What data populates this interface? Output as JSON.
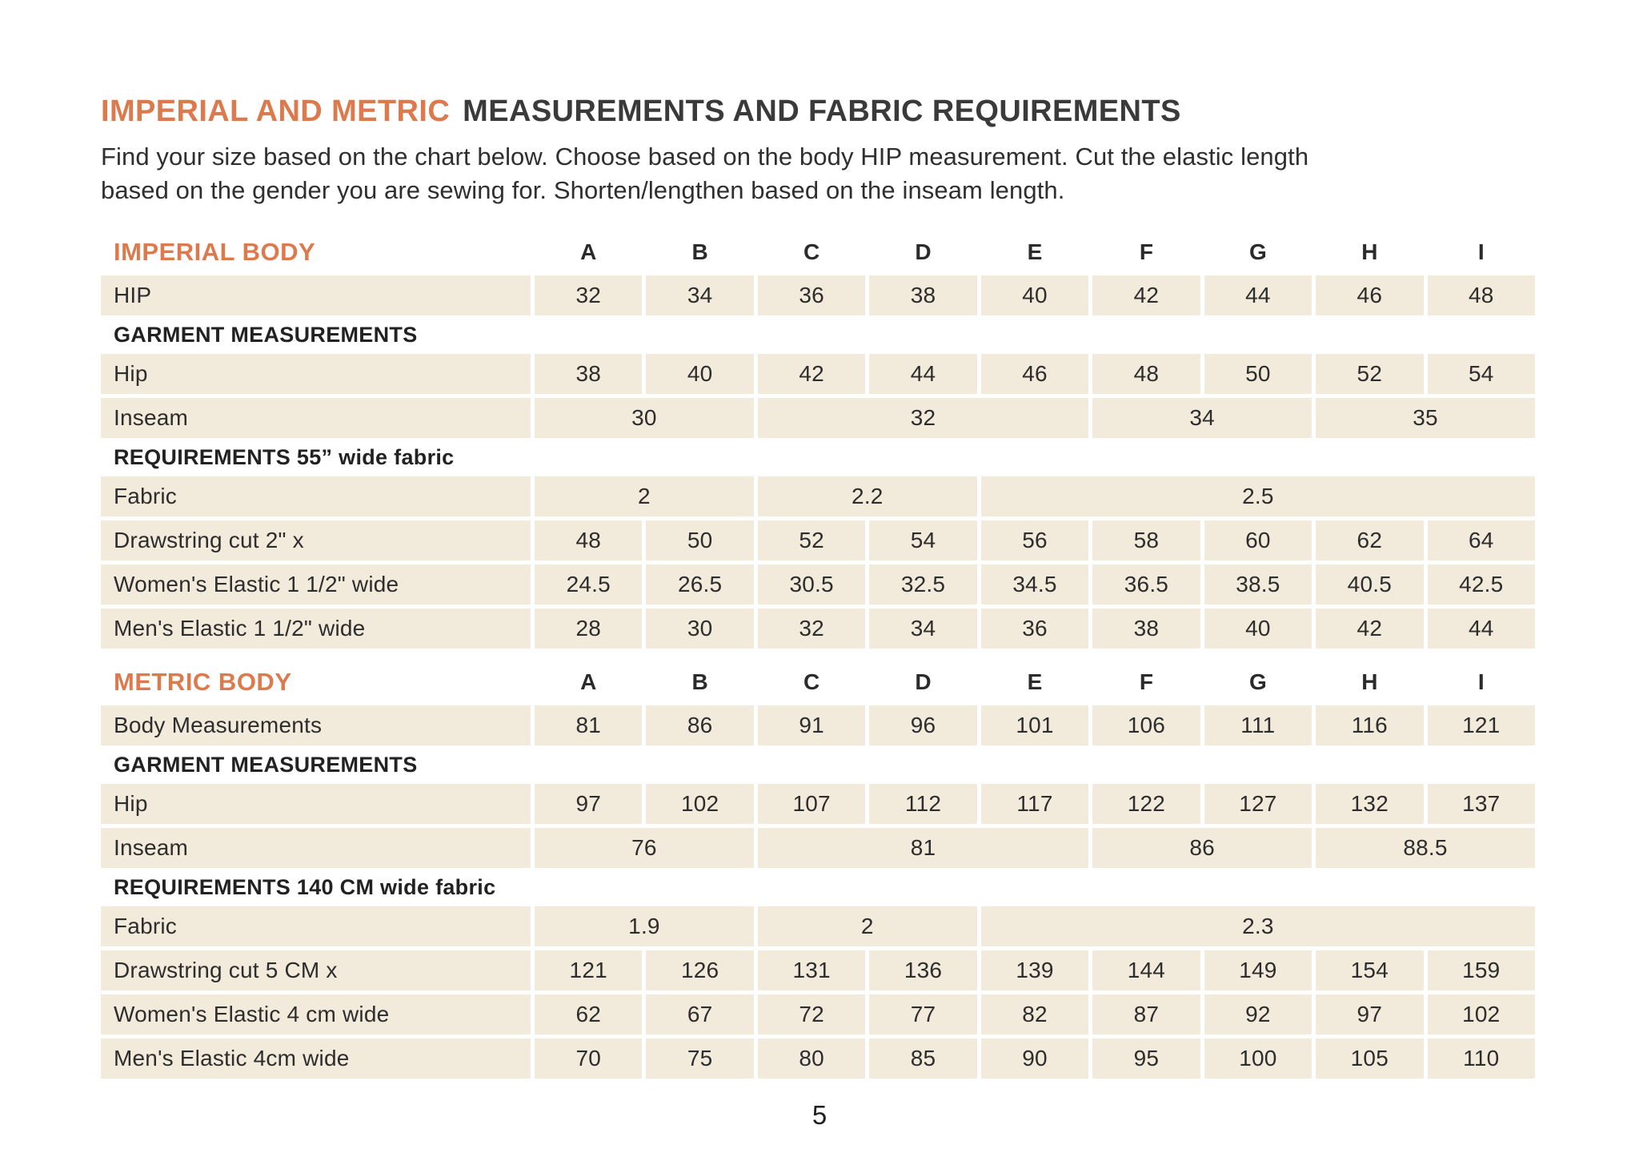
{
  "page": {
    "title_accent": "IMPERIAL AND METRIC",
    "title_main": "MEASUREMENTS AND FABRIC REQUIREMENTS",
    "intro": [
      "Find your size based on the chart below. Choose based on the body HIP measurement. Cut the elastic length",
      "based on the gender you are sewing for. Shorten/lengthen based on the inseam length."
    ],
    "page_number": "5"
  },
  "colors": {
    "accent": "#DC7A4E",
    "cell_background": "#F2EADA",
    "text": "#2D2D2D"
  },
  "size_columns": [
    "A",
    "B",
    "C",
    "D",
    "E",
    "F",
    "G",
    "H",
    "I"
  ],
  "sections": [
    {
      "heading": "IMPERIAL BODY",
      "rows": [
        {
          "type": "data",
          "label": "HIP",
          "cells": [
            "32",
            "34",
            "36",
            "38",
            "40",
            "42",
            "44",
            "46",
            "48"
          ]
        },
        {
          "type": "subhead",
          "label": "GARMENT MEASUREMENTS"
        },
        {
          "type": "data",
          "label": "Hip",
          "cells": [
            "38",
            "40",
            "42",
            "44",
            "46",
            "48",
            "50",
            "52",
            "54"
          ]
        },
        {
          "type": "data",
          "label": "Inseam",
          "cells": [
            {
              "v": "30",
              "span": 2
            },
            {
              "v": "32",
              "span": 3
            },
            {
              "v": "34",
              "span": 2
            },
            {
              "v": "35",
              "span": 2
            }
          ]
        },
        {
          "type": "subhead",
          "label": "REQUIREMENTS 55” wide fabric"
        },
        {
          "type": "data",
          "label": "Fabric",
          "cells": [
            {
              "v": "2",
              "span": 2
            },
            {
              "v": "2.2",
              "span": 2
            },
            {
              "v": "2.5",
              "span": 5
            }
          ]
        },
        {
          "type": "data",
          "label": "Drawstring cut 2\" x",
          "cells": [
            "48",
            "50",
            "52",
            "54",
            "56",
            "58",
            "60",
            "62",
            "64"
          ]
        },
        {
          "type": "data",
          "label": "Women's Elastic 1 1/2\" wide",
          "cells": [
            "24.5",
            "26.5",
            "30.5",
            "32.5",
            "34.5",
            "36.5",
            "38.5",
            "40.5",
            "42.5"
          ]
        },
        {
          "type": "data",
          "label": "Men's Elastic 1 1/2\" wide",
          "cells": [
            "28",
            "30",
            "32",
            "34",
            "36",
            "38",
            "40",
            "42",
            "44"
          ]
        }
      ]
    },
    {
      "heading": "METRIC BODY",
      "rows": [
        {
          "type": "data",
          "label": "Body Measurements",
          "cells": [
            "81",
            "86",
            "91",
            "96",
            "101",
            "106",
            "111",
            "116",
            "121"
          ]
        },
        {
          "type": "subhead",
          "label": "GARMENT MEASUREMENTS"
        },
        {
          "type": "data",
          "label": "Hip",
          "cells": [
            "97",
            "102",
            "107",
            "112",
            "117",
            "122",
            "127",
            "132",
            "137"
          ]
        },
        {
          "type": "data",
          "label": "Inseam",
          "cells": [
            {
              "v": "76",
              "span": 2
            },
            {
              "v": "81",
              "span": 3
            },
            {
              "v": "86",
              "span": 2
            },
            {
              "v": "88.5",
              "span": 2
            }
          ]
        },
        {
          "type": "subhead",
          "label": "REQUIREMENTS 140 CM wide fabric"
        },
        {
          "type": "data",
          "label": "Fabric",
          "cells": [
            {
              "v": "1.9",
              "span": 2
            },
            {
              "v": "2",
              "span": 2
            },
            {
              "v": "2.3",
              "span": 5
            }
          ]
        },
        {
          "type": "data",
          "label": "Drawstring cut 5 CM x",
          "cells": [
            "121",
            "126",
            "131",
            "136",
            "139",
            "144",
            "149",
            "154",
            "159"
          ]
        },
        {
          "type": "data",
          "label": "Women's Elastic 4 cm wide",
          "cells": [
            "62",
            "67",
            "72",
            "77",
            "82",
            "87",
            "92",
            "97",
            "102"
          ]
        },
        {
          "type": "data",
          "label": "Men's Elastic 4cm wide",
          "cells": [
            "70",
            "75",
            "80",
            "85",
            "90",
            "95",
            "100",
            "105",
            "110"
          ]
        }
      ]
    }
  ]
}
